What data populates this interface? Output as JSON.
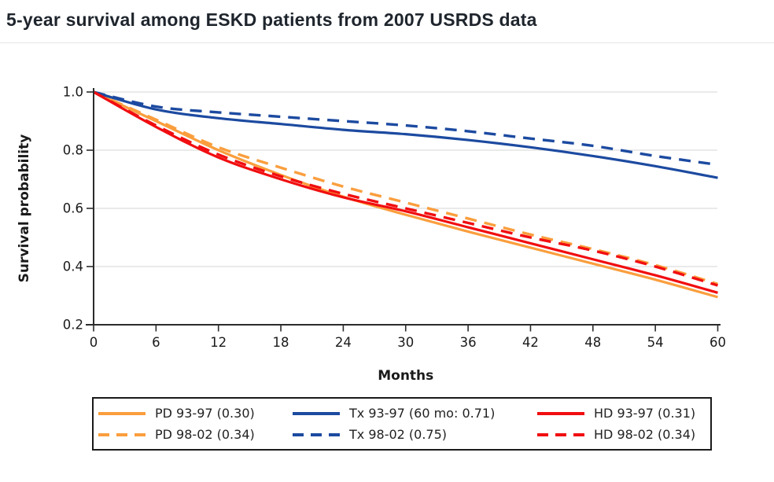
{
  "header": {
    "title": "5-year survival among ESKD patients from 2007 USRDS data",
    "title_color": "#1f252d",
    "divider_color": "#e2e5e9"
  },
  "chart_data": {
    "type": "line",
    "title": "5-year survival among ESKD patients from 2007 USRDS data",
    "xlabel": "Months",
    "ylabel": "Survival probability",
    "xlim": [
      0,
      60
    ],
    "ylim": [
      0.2,
      1.0
    ],
    "xticks": [
      0,
      6,
      12,
      18,
      24,
      30,
      36,
      42,
      48,
      54,
      60
    ],
    "yticks": [
      1.0,
      0.8,
      0.6,
      0.4,
      0.2
    ],
    "grid": "horizontal gridlines at y ticks, light gray",
    "axis_color": "#2b2b2b",
    "grid_color": "#dedede",
    "tick_label_color": "#1a1a1a",
    "x": [
      0,
      6,
      12,
      18,
      24,
      30,
      36,
      42,
      48,
      54,
      60
    ],
    "series": [
      {
        "name": "PD 93-97 (0.30)",
        "group": "PD",
        "period": "93-97",
        "final_value": 0.3,
        "color": "#fa9e3d",
        "style": "solid",
        "values": [
          1.0,
          0.9,
          0.8,
          0.715,
          0.64,
          0.578,
          0.52,
          0.465,
          0.41,
          0.355,
          0.295
        ]
      },
      {
        "name": "PD 98-02 (0.34)",
        "group": "PD",
        "period": "98-02",
        "final_value": 0.34,
        "color": "#fa9e3d",
        "style": "dashed",
        "values": [
          1.0,
          0.905,
          0.81,
          0.74,
          0.675,
          0.62,
          0.565,
          0.51,
          0.46,
          0.405,
          0.34
        ]
      },
      {
        "name": "Tx 93-97 (60 mo: 0.71)",
        "group": "Tx",
        "period": "93-97",
        "final_value": 0.71,
        "color": "#1c4aa0",
        "style": "solid",
        "values": [
          1.0,
          0.94,
          0.91,
          0.89,
          0.87,
          0.855,
          0.835,
          0.81,
          0.78,
          0.745,
          0.705
        ]
      },
      {
        "name": "Tx 98-02 (0.75)",
        "group": "Tx",
        "period": "98-02",
        "final_value": 0.75,
        "color": "#1c4aa0",
        "style": "dashed",
        "values": [
          1.0,
          0.95,
          0.93,
          0.915,
          0.9,
          0.885,
          0.865,
          0.84,
          0.815,
          0.78,
          0.75
        ]
      },
      {
        "name": "HD 93-97 (0.31)",
        "group": "HD",
        "period": "93-97",
        "final_value": 0.31,
        "color": "#f10e10",
        "style": "solid",
        "values": [
          1.0,
          0.88,
          0.775,
          0.7,
          0.638,
          0.59,
          0.535,
          0.48,
          0.425,
          0.37,
          0.31
        ]
      },
      {
        "name": "HD 98-02 (0.34)",
        "group": "HD",
        "period": "98-02",
        "final_value": 0.34,
        "color": "#f10e10",
        "style": "dashed",
        "values": [
          1.0,
          0.885,
          0.785,
          0.71,
          0.65,
          0.6,
          0.55,
          0.5,
          0.455,
          0.4,
          0.335
        ]
      }
    ],
    "legend": {
      "position": "bottom",
      "border_color": "#1a1a1a",
      "rows": [
        [
          0,
          2,
          4
        ],
        [
          1,
          3,
          5
        ]
      ]
    }
  }
}
